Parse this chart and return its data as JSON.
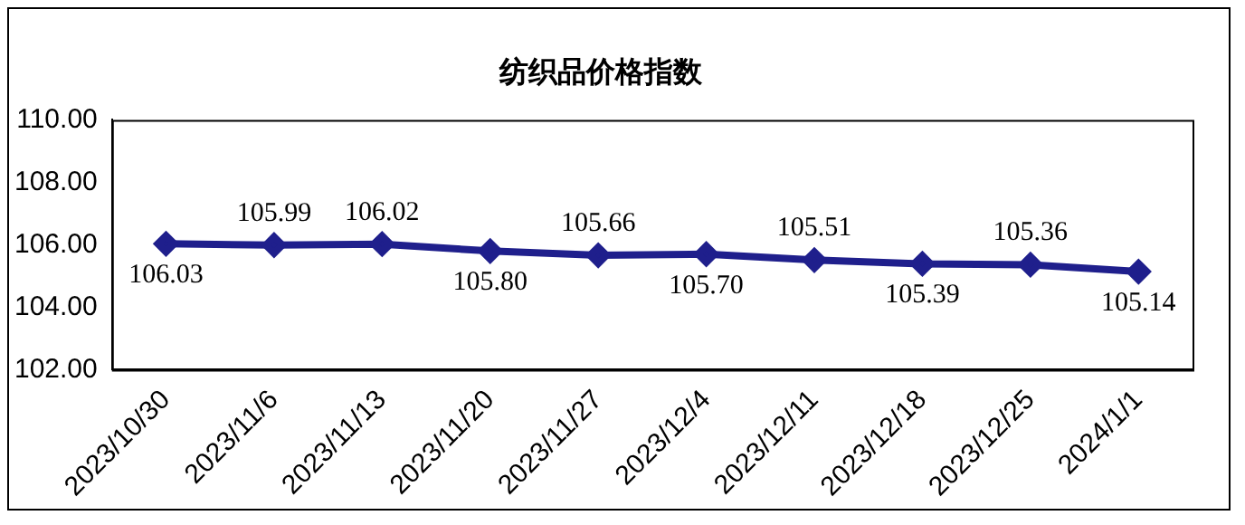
{
  "chart_data": {
    "type": "line",
    "title": "纺织品价格指数",
    "categories": [
      "2023/10/30",
      "2023/11/6",
      "2023/11/13",
      "2023/11/20",
      "2023/11/27",
      "2023/12/4",
      "2023/12/11",
      "2023/12/18",
      "2023/12/25",
      "2024/1/1"
    ],
    "series": [
      {
        "color": "#1f1f8c",
        "values": [
          106.03,
          105.99,
          106.02,
          105.8,
          105.66,
          105.7,
          105.51,
          105.39,
          105.36,
          105.14
        ]
      }
    ],
    "ylim": [
      102,
      110
    ],
    "yticks": [
      {
        "value": 102,
        "label": "102.00"
      },
      {
        "value": 104,
        "label": "104.00"
      },
      {
        "value": 106,
        "label": "106.00"
      },
      {
        "value": 108,
        "label": "108.00"
      },
      {
        "value": 110,
        "label": "110.00"
      }
    ],
    "value_labels": [
      "106.03",
      "105.99",
      "106.02",
      "105.80",
      "105.66",
      "105.70",
      "105.51",
      "105.39",
      "105.36",
      "105.14"
    ],
    "grid": false,
    "legend": false,
    "marker": "diamond",
    "line_style": "solid"
  }
}
